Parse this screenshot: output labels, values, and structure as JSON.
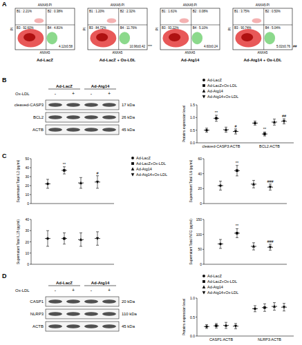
{
  "panel_labels": [
    "A",
    "B",
    "C",
    "D"
  ],
  "flow": {
    "title": "ANXA5:PI",
    "x_label": "ANXA5",
    "y_label": "PI",
    "plots": [
      {
        "group": "Ad-LacZ",
        "quadrants": [
          "B1 : 2.21%",
          "B2 : 0.38%",
          "B3 : 92.60%",
          "B4 : 4.81%"
        ],
        "stat": "4.12±0.58",
        "sig": null
      },
      {
        "group": "Ad-LacZ + Ox-LDL",
        "quadrants": [
          "B1 : 1.20%",
          "B2 : 2.32%",
          "B3 : 84.72%",
          "B4 : 11.76%"
        ],
        "stat": "10.96±0.42",
        "sig": "***"
      },
      {
        "group": "Ad-Atg14",
        "quadrants": [
          "B1 : 1.61%",
          "B2 : 0.08%",
          "B3 : 93.22%",
          "B4 : 5.10%"
        ],
        "stat": "4.60±0.24",
        "sig": null
      },
      {
        "group": "Ad-Atg14 + Ox-LDL",
        "quadrants": [
          "B1 : 3.75%",
          "B2 : 0.50%",
          "B3 : 90.74%",
          "B4 : 5.04%"
        ],
        "stat": "5.02±0.76",
        "sig": "##"
      }
    ]
  },
  "blot_b": {
    "headers": [
      "Ad-LacZ",
      "Ad-Atg14"
    ],
    "treatment": "Ox-LDL",
    "signs": [
      "-",
      "+",
      "-",
      "+"
    ],
    "rows": [
      {
        "name": "cleaved-CASP3",
        "size": "17 kDa"
      },
      {
        "name": "BCL2",
        "size": "26 kDa"
      },
      {
        "name": "ACTB",
        "size": "45 kDa"
      }
    ]
  },
  "blot_d": {
    "headers": [
      "Ad-LacZ",
      "Ad-Atg14"
    ],
    "treatment": "Ox-LDL",
    "signs": [
      "-",
      "+",
      "-",
      "+"
    ],
    "rows": [
      {
        "name": "CASP1",
        "size": "20 kDa"
      },
      {
        "name": "NLRP3",
        "size": "110 kDa"
      },
      {
        "name": "ACTB",
        "size": "45 kDa"
      }
    ]
  },
  "chart_data": [
    {
      "type": "dot",
      "y_label": "Proteins expression level",
      "categories": [
        "cleaved-CASP3:ACTB",
        "BCL2:ACTB"
      ],
      "ylim": [
        0,
        1.5
      ],
      "yticks": [
        {
          "value": 0,
          "label": "0.0"
        },
        {
          "value": 0.5,
          "label": "0.5"
        },
        {
          "value": 1,
          "label": "1.0"
        },
        {
          "value": 1.5,
          "label": "1.5"
        }
      ],
      "legend": "top",
      "series": [
        {
          "name": "Ad-LacZ",
          "color": "#000000",
          "marker": "circle",
          "values": [
            0.5,
            0.78
          ],
          "errors": [
            0.08,
            0.08
          ],
          "significance": [
            null,
            null
          ]
        },
        {
          "name": "Ad-LacZ+Ox-LDL",
          "color": "#000000",
          "marker": "square",
          "values": [
            0.97,
            0.35
          ],
          "errors": [
            0.12,
            0.08
          ],
          "significance": [
            "**",
            "**"
          ]
        },
        {
          "name": "Ad-Atg14",
          "color": "#000000",
          "marker": "triangle",
          "values": [
            0.52,
            0.82
          ],
          "errors": [
            0.1,
            0.12
          ],
          "significance": [
            null,
            null
          ]
        },
        {
          "name": "Ad-Atg14+Ox-LDL",
          "color": "#000000",
          "marker": "triangle-down",
          "values": [
            0.45,
            0.85
          ],
          "errors": [
            0.1,
            0.1
          ],
          "significance": [
            "#",
            "##"
          ]
        }
      ]
    },
    {
      "type": "dot",
      "y_label": "Supernatant Total IL2 (pg/ml)",
      "categories": [
        null
      ],
      "ylim": [
        0,
        50
      ],
      "yticks": [
        0,
        10,
        20,
        30,
        40,
        50
      ],
      "legend": "right",
      "series": [
        {
          "name": "Ad-LacZ",
          "color": "#000000",
          "marker": "circle",
          "values": [
            22
          ],
          "errors": [
            5
          ],
          "significance": [
            null
          ]
        },
        {
          "name": "Ad-LacZ+Ox-LDL",
          "color": "#000000",
          "marker": "square",
          "values": [
            37
          ],
          "errors": [
            4
          ],
          "significance": [
            "**"
          ]
        },
        {
          "name": "Ad-Atg14",
          "color": "#000000",
          "marker": "triangle",
          "values": [
            23
          ],
          "errors": [
            6
          ],
          "significance": [
            null
          ]
        },
        {
          "name": "Ad-Atg14+Ox-LDL",
          "color": "#000000",
          "marker": "triangle-down",
          "values": [
            24
          ],
          "errors": [
            7
          ],
          "significance": [
            "#"
          ]
        }
      ]
    },
    {
      "type": "dot",
      "y_label": "Supernatant Total IL6 (pg/ml)",
      "categories": [
        null
      ],
      "ylim": [
        0,
        60
      ],
      "yticks": [
        0,
        20,
        40,
        60
      ],
      "series": [
        {
          "color": "#000000",
          "marker": "circle",
          "values": [
            24
          ],
          "errors": [
            6
          ],
          "significance": [
            null
          ]
        },
        {
          "color": "#000000",
          "marker": "square",
          "values": [
            44
          ],
          "errors": [
            7
          ],
          "significance": [
            "**"
          ]
        },
        {
          "color": "#000000",
          "marker": "triangle",
          "values": [
            26
          ],
          "errors": [
            5
          ],
          "significance": [
            null
          ]
        },
        {
          "color": "#000000",
          "marker": "triangle-down",
          "values": [
            22
          ],
          "errors": [
            4
          ],
          "significance": [
            "###"
          ]
        }
      ]
    },
    {
      "type": "dot",
      "y_label": "Supernatant Total IL1B (pg/ml)",
      "categories": [
        null
      ],
      "ylim": [
        0,
        40
      ],
      "yticks": [
        0,
        10,
        20,
        30,
        40
      ],
      "series": [
        {
          "color": "#000000",
          "marker": "circle",
          "values": [
            23
          ],
          "errors": [
            7
          ],
          "significance": [
            null
          ]
        },
        {
          "color": "#000000",
          "marker": "square",
          "values": [
            23
          ],
          "errors": [
            5
          ],
          "significance": [
            null
          ]
        },
        {
          "color": "#000000",
          "marker": "triangle",
          "values": [
            22
          ],
          "errors": [
            6
          ],
          "significance": [
            null
          ]
        },
        {
          "color": "#000000",
          "marker": "triangle-down",
          "values": [
            23
          ],
          "errors": [
            6
          ],
          "significance": [
            null
          ]
        }
      ]
    },
    {
      "type": "dot",
      "y_label": "Supernatant Total INFG (pg/ml)",
      "categories": [
        null
      ],
      "ylim": [
        0,
        150
      ],
      "yticks": [
        0,
        50,
        100,
        150
      ],
      "series": [
        {
          "color": "#000000",
          "marker": "circle",
          "values": [
            68
          ],
          "errors": [
            15
          ],
          "significance": [
            null
          ]
        },
        {
          "color": "#000000",
          "marker": "square",
          "values": [
            104
          ],
          "errors": [
            15
          ],
          "significance": [
            "**"
          ]
        },
        {
          "color": "#000000",
          "marker": "triangle",
          "values": [
            60
          ],
          "errors": [
            12
          ],
          "significance": [
            null
          ]
        },
        {
          "color": "#000000",
          "marker": "triangle-down",
          "values": [
            57
          ],
          "errors": [
            10
          ],
          "significance": [
            "###"
          ]
        }
      ]
    },
    {
      "type": "dot",
      "y_label": "Proteins expression level",
      "categories": [
        "CASP1:ACTB",
        "NLRP3:ACTB"
      ],
      "ylim": [
        0,
        1
      ],
      "yticks": [
        {
          "value": 0,
          "label": "0.0"
        },
        {
          "value": 0.5,
          "label": "0.5"
        },
        {
          "value": 1,
          "label": "1.0"
        }
      ],
      "legend": "top",
      "series": [
        {
          "name": "Ad-LacZ",
          "color": "#000000",
          "marker": "circle",
          "values": [
            0.25,
            0.72
          ],
          "errors": [
            0.05,
            0.08
          ],
          "significance": [
            null,
            null
          ]
        },
        {
          "name": "Ad-LacZ+Ox-LDL",
          "color": "#000000",
          "marker": "square",
          "values": [
            0.27,
            0.75
          ],
          "errors": [
            0.06,
            0.1
          ],
          "significance": [
            null,
            null
          ]
        },
        {
          "name": "Ad-Atg14",
          "color": "#000000",
          "marker": "triangle",
          "values": [
            0.28,
            0.78
          ],
          "errors": [
            0.08,
            0.1
          ],
          "significance": [
            null,
            null
          ]
        },
        {
          "name": "Ad-Atg14+Ox-LDL",
          "color": "#000000",
          "marker": "triangle-down",
          "values": [
            0.26,
            0.76
          ],
          "errors": [
            0.07,
            0.1
          ],
          "significance": [
            null,
            null
          ]
        }
      ]
    }
  ]
}
